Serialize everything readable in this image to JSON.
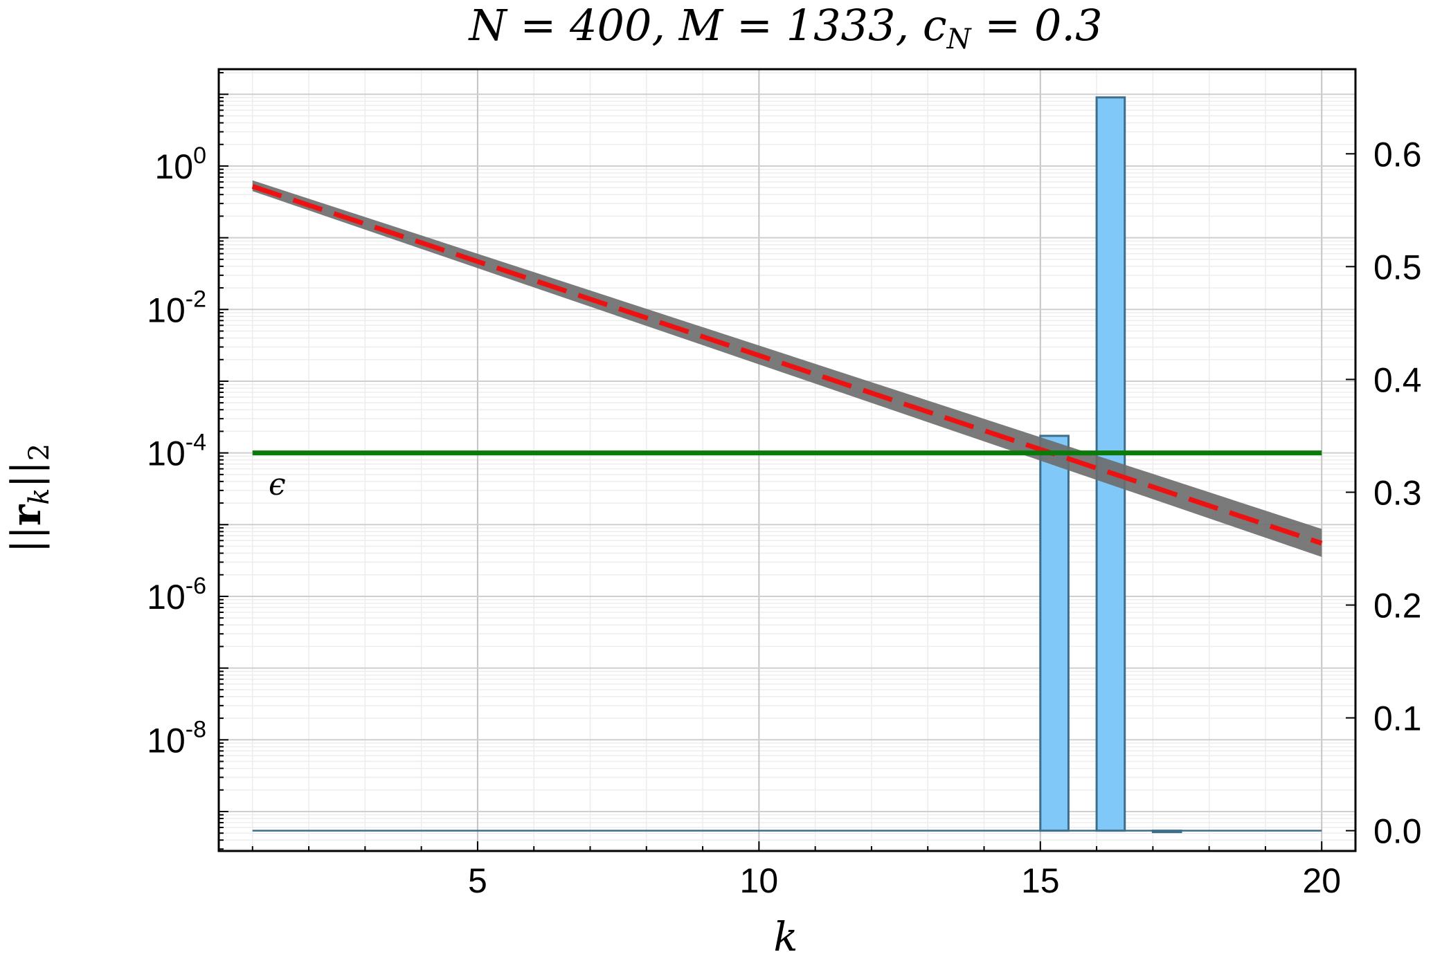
{
  "chart_data": {
    "type": "line",
    "title": "N = 400, M = 1333, c_N = 0.3",
    "xlabel": "k",
    "ylabel": "||r_k||_2",
    "xlim": [
      0.4,
      20.6
    ],
    "ylim_log": [
      -9.55,
      1.35
    ],
    "y2lim": [
      -0.018,
      0.675
    ],
    "y_scale": "log",
    "grid": true,
    "x_ticks": [
      5,
      10,
      15,
      20
    ],
    "x_tick_labels": [
      "5",
      "10",
      "15",
      "20"
    ],
    "y_ticks": [
      {
        "exp": 0,
        "base": "10",
        "sup": "0"
      },
      {
        "exp": -2,
        "base": "10",
        "sup": "-2"
      },
      {
        "exp": -4,
        "base": "10",
        "sup": "-4"
      },
      {
        "exp": -6,
        "base": "10",
        "sup": "-6"
      },
      {
        "exp": -8,
        "base": "10",
        "sup": "-8"
      }
    ],
    "y2_ticks": [
      0.0,
      0.1,
      0.2,
      0.3,
      0.4,
      0.5,
      0.6
    ],
    "y2_tick_labels": [
      "0.0",
      "0.1",
      "0.2",
      "0.3",
      "0.4",
      "0.5",
      "0.6"
    ],
    "series": [
      {
        "kind": "band",
        "color": "#6b6b6b",
        "x": [
          1,
          20
        ],
        "upper_log10": [
          -0.2,
          -5.06
        ],
        "lower_log10": [
          -0.35,
          -5.45
        ]
      },
      {
        "kind": "dashed-line",
        "color": "#ee1111",
        "x": [
          1,
          20
        ],
        "y": [
          0.52,
          5.5e-06
        ]
      },
      {
        "kind": "threshold",
        "color": "#0a7a0a",
        "y": 0.0001,
        "label": "ϵ"
      },
      {
        "kind": "histogram",
        "axis": "right",
        "color": "#7fc8f8",
        "edge_color": "#3d6e8a",
        "bin_width": 0.5,
        "bin_starts": [
          15,
          16,
          17
        ],
        "values": [
          0.35,
          0.65,
          0.0
        ]
      }
    ]
  }
}
